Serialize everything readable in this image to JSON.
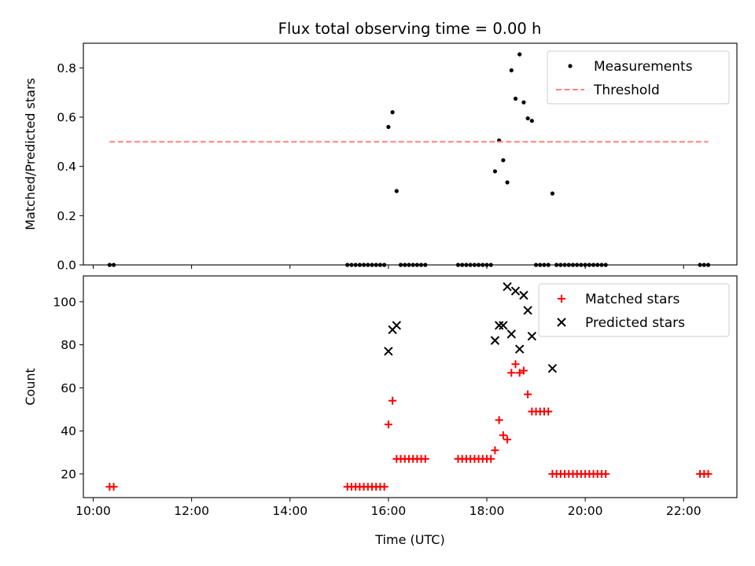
{
  "figure": {
    "title": "Flux total observing time = 0.00 h"
  },
  "chart_data": [
    {
      "type": "scatter",
      "ylabel": "Matched/Predicted stars",
      "xlabel": "",
      "xlim": [
        "09:48",
        "23:05"
      ],
      "ylim": [
        0,
        0.9
      ],
      "yticks": [
        0.0,
        0.2,
        0.4,
        0.6,
        0.8
      ],
      "ytick_labels": [
        "0.0",
        "0.2",
        "0.4",
        "0.6",
        "0.8"
      ],
      "xticks": [
        "10:00",
        "12:00",
        "14:00",
        "16:00",
        "18:00",
        "20:00",
        "22:00"
      ],
      "legend_position": "top-right",
      "series": [
        {
          "name": "Measurements",
          "marker": "dot",
          "color": "#000000",
          "points": [
            [
              "10:20",
              0
            ],
            [
              "10:25",
              0
            ],
            [
              "15:10",
              0
            ],
            [
              "15:15",
              0
            ],
            [
              "15:20",
              0
            ],
            [
              "15:25",
              0
            ],
            [
              "15:30",
              0
            ],
            [
              "15:35",
              0
            ],
            [
              "15:40",
              0
            ],
            [
              "15:45",
              0
            ],
            [
              "15:50",
              0
            ],
            [
              "15:55",
              0
            ],
            [
              "16:00",
              0.56
            ],
            [
              "16:05",
              0.62
            ],
            [
              "16:10",
              0.3
            ],
            [
              "16:15",
              0
            ],
            [
              "16:20",
              0
            ],
            [
              "16:25",
              0
            ],
            [
              "16:30",
              0
            ],
            [
              "16:35",
              0
            ],
            [
              "16:40",
              0
            ],
            [
              "16:45",
              0
            ],
            [
              "17:25",
              0
            ],
            [
              "17:30",
              0
            ],
            [
              "17:35",
              0
            ],
            [
              "17:40",
              0
            ],
            [
              "17:45",
              0
            ],
            [
              "17:50",
              0
            ],
            [
              "17:55",
              0
            ],
            [
              "18:00",
              0
            ],
            [
              "18:05",
              0
            ],
            [
              "18:10",
              0.38
            ],
            [
              "18:15",
              0.505
            ],
            [
              "18:20",
              0.425
            ],
            [
              "18:25",
              0.335
            ],
            [
              "18:30",
              0.79
            ],
            [
              "18:35",
              0.675
            ],
            [
              "18:40",
              0.855
            ],
            [
              "18:45",
              0.66
            ],
            [
              "18:50",
              0.595
            ],
            [
              "18:55",
              0.585
            ],
            [
              "19:00",
              0
            ],
            [
              "19:05",
              0
            ],
            [
              "19:10",
              0
            ],
            [
              "19:15",
              0
            ],
            [
              "19:20",
              0.29
            ],
            [
              "19:25",
              0
            ],
            [
              "19:30",
              0
            ],
            [
              "19:35",
              0
            ],
            [
              "19:40",
              0
            ],
            [
              "19:45",
              0
            ],
            [
              "19:50",
              0
            ],
            [
              "19:55",
              0
            ],
            [
              "20:00",
              0
            ],
            [
              "20:05",
              0
            ],
            [
              "20:10",
              0
            ],
            [
              "20:15",
              0
            ],
            [
              "20:20",
              0
            ],
            [
              "20:25",
              0
            ],
            [
              "22:20",
              0
            ],
            [
              "22:25",
              0
            ],
            [
              "22:30",
              0
            ]
          ]
        },
        {
          "name": "Threshold",
          "marker": "dashed-line",
          "color": "#ff8080",
          "points": [
            [
              "10:20",
              0.5
            ],
            [
              "22:30",
              0.5
            ]
          ]
        }
      ]
    },
    {
      "type": "scatter",
      "ylabel": "Count",
      "xlabel": "Time (UTC)",
      "xlim": [
        "09:48",
        "23:05"
      ],
      "ylim": [
        9,
        112
      ],
      "yticks": [
        20,
        40,
        60,
        80,
        100
      ],
      "ytick_labels": [
        "20",
        "40",
        "60",
        "80",
        "100"
      ],
      "xticks": [
        "10:00",
        "12:00",
        "14:00",
        "16:00",
        "18:00",
        "20:00",
        "22:00"
      ],
      "xtick_labels": [
        "10:00",
        "12:00",
        "14:00",
        "16:00",
        "18:00",
        "20:00",
        "22:00"
      ],
      "legend_position": "top-right",
      "series": [
        {
          "name": "Matched stars",
          "marker": "plus",
          "color": "#ff0000",
          "points": [
            [
              "10:20",
              14
            ],
            [
              "10:25",
              14
            ],
            [
              "15:10",
              14
            ],
            [
              "15:15",
              14
            ],
            [
              "15:20",
              14
            ],
            [
              "15:25",
              14
            ],
            [
              "15:30",
              14
            ],
            [
              "15:35",
              14
            ],
            [
              "15:40",
              14
            ],
            [
              "15:45",
              14
            ],
            [
              "15:50",
              14
            ],
            [
              "15:55",
              14
            ],
            [
              "16:00",
              43
            ],
            [
              "16:05",
              54
            ],
            [
              "16:10",
              27
            ],
            [
              "16:15",
              27
            ],
            [
              "16:20",
              27
            ],
            [
              "16:25",
              27
            ],
            [
              "16:30",
              27
            ],
            [
              "16:35",
              27
            ],
            [
              "16:40",
              27
            ],
            [
              "16:45",
              27
            ],
            [
              "17:25",
              27
            ],
            [
              "17:30",
              27
            ],
            [
              "17:35",
              27
            ],
            [
              "17:40",
              27
            ],
            [
              "17:45",
              27
            ],
            [
              "17:50",
              27
            ],
            [
              "17:55",
              27
            ],
            [
              "18:00",
              27
            ],
            [
              "18:05",
              27
            ],
            [
              "18:10",
              31
            ],
            [
              "18:15",
              45
            ],
            [
              "18:20",
              38
            ],
            [
              "18:25",
              36
            ],
            [
              "18:30",
              67
            ],
            [
              "18:35",
              71
            ],
            [
              "18:40",
              67
            ],
            [
              "18:45",
              68
            ],
            [
              "18:50",
              57
            ],
            [
              "18:55",
              49
            ],
            [
              "19:00",
              49
            ],
            [
              "19:05",
              49
            ],
            [
              "19:10",
              49
            ],
            [
              "19:15",
              49
            ],
            [
              "19:20",
              20
            ],
            [
              "19:25",
              20
            ],
            [
              "19:30",
              20
            ],
            [
              "19:35",
              20
            ],
            [
              "19:40",
              20
            ],
            [
              "19:45",
              20
            ],
            [
              "19:50",
              20
            ],
            [
              "19:55",
              20
            ],
            [
              "20:00",
              20
            ],
            [
              "20:05",
              20
            ],
            [
              "20:10",
              20
            ],
            [
              "20:15",
              20
            ],
            [
              "20:20",
              20
            ],
            [
              "20:25",
              20
            ],
            [
              "22:20",
              20
            ],
            [
              "22:25",
              20
            ],
            [
              "22:30",
              20
            ]
          ]
        },
        {
          "name": "Predicted stars",
          "marker": "x",
          "color": "#000000",
          "points": [
            [
              "16:00",
              77
            ],
            [
              "16:05",
              87
            ],
            [
              "16:10",
              89
            ],
            [
              "18:10",
              82
            ],
            [
              "18:15",
              89
            ],
            [
              "18:20",
              89
            ],
            [
              "18:25",
              107
            ],
            [
              "18:30",
              85
            ],
            [
              "18:35",
              105
            ],
            [
              "18:40",
              78
            ],
            [
              "18:45",
              103
            ],
            [
              "18:50",
              96
            ],
            [
              "18:55",
              84
            ],
            [
              "19:20",
              69
            ]
          ]
        }
      ]
    }
  ]
}
